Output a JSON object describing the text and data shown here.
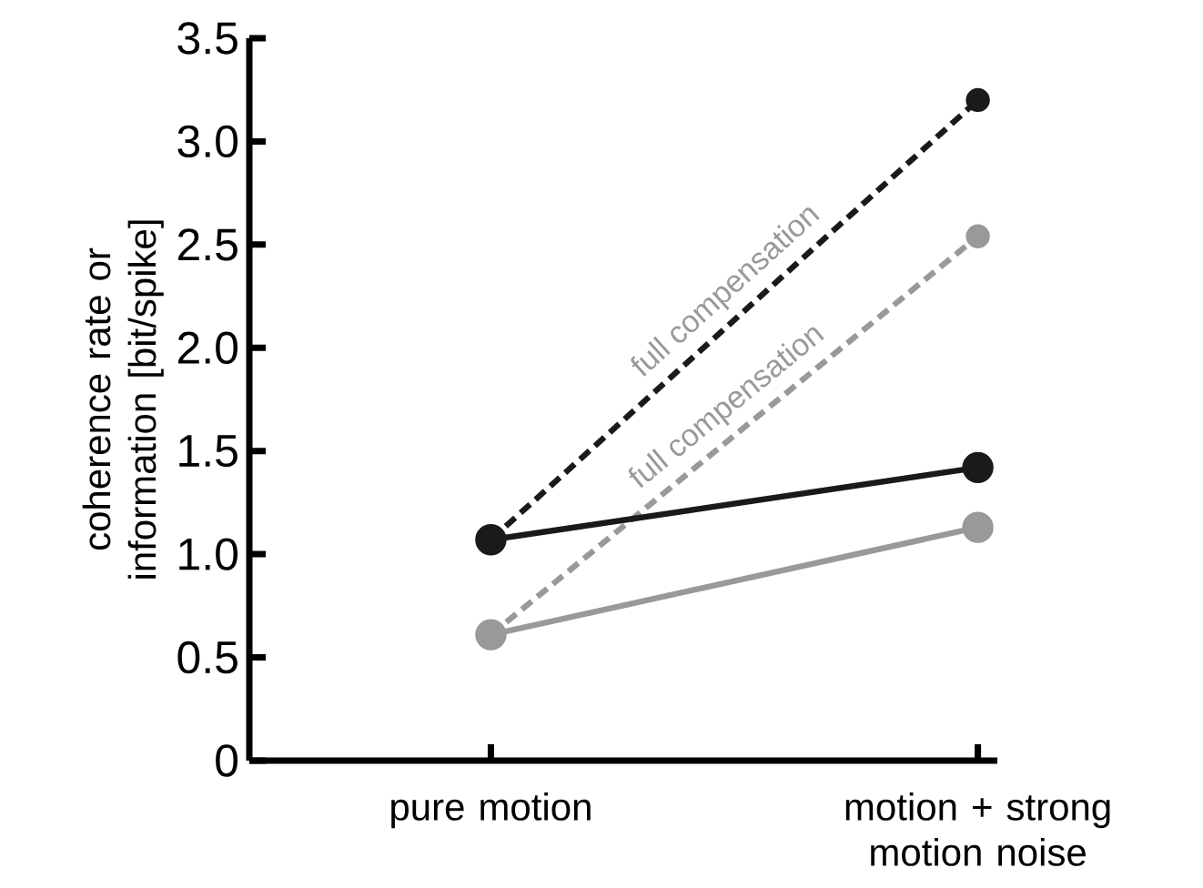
{
  "chart_data": {
    "type": "line",
    "ylabel": "coherence rate or information [bit/spike]",
    "categories": [
      "pure motion",
      "motion + strong motion noise"
    ],
    "ylim": [
      0,
      3.5
    ],
    "yticks": [
      0,
      0.5,
      {
        "value": 1,
        "label": "1.0"
      },
      1.5,
      {
        "value": 2,
        "label": "2.0"
      },
      2.5,
      {
        "value": 3,
        "label": "3.0"
      },
      3.5
    ],
    "marker": "circle",
    "series": [
      {
        "color": "#999999",
        "line_style": "dashed",
        "values": [
          0.61,
          2.54
        ]
      },
      {
        "color": "#1a1a1a",
        "line_style": "dashed",
        "values": [
          1.07,
          3.2
        ]
      },
      {
        "color": "#999999",
        "line_style": "solid",
        "values": [
          0.61,
          1.13
        ]
      },
      {
        "color": "#1a1a1a",
        "line_style": "solid",
        "values": [
          1.07,
          1.42
        ]
      }
    ],
    "annotations": [
      "full compensation",
      "full compensation"
    ]
  }
}
